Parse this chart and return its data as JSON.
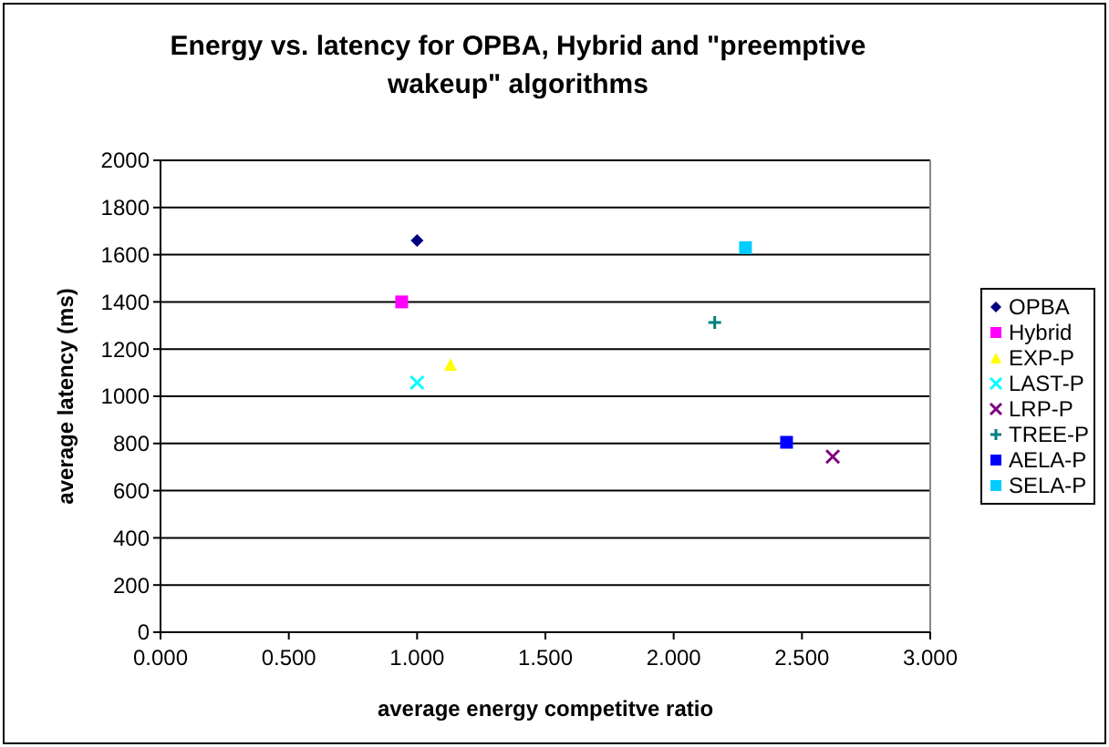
{
  "chart_data": {
    "type": "scatter",
    "title": "Energy vs. latency for OPBA, Hybrid and \"preemptive wakeup\" algorithms",
    "xlabel": "average energy competitve ratio",
    "ylabel": "average latency (ms)",
    "xlim": [
      0,
      3
    ],
    "xticks": [
      {
        "value": 0,
        "label": "0.000"
      },
      {
        "value": 0.5,
        "label": "0.500"
      },
      {
        "value": 1,
        "label": "1.000"
      },
      {
        "value": 1.5,
        "label": "1.500"
      },
      {
        "value": 2,
        "label": "2.000"
      },
      {
        "value": 2.5,
        "label": "2.500"
      },
      {
        "value": 3,
        "label": "3.000"
      }
    ],
    "ylim": [
      0,
      2000
    ],
    "yticks": [
      0,
      200,
      400,
      600,
      800,
      1000,
      1200,
      1400,
      1600,
      1800,
      2000
    ],
    "grid": "y",
    "legend": "right",
    "series": [
      {
        "name": "OPBA",
        "color": "#000080",
        "marker": "diamond",
        "x": [
          1.0
        ],
        "values": [
          1660
        ]
      },
      {
        "name": "Hybrid",
        "color": "#ff00ff",
        "marker": "square",
        "x": [
          0.94
        ],
        "values": [
          1400
        ]
      },
      {
        "name": "EXP-P",
        "color": "#ffff00",
        "marker": "triangle",
        "x": [
          1.13
        ],
        "values": [
          1135
        ]
      },
      {
        "name": "LAST-P",
        "color": "#00ffff",
        "marker": "cross",
        "x": [
          1.0
        ],
        "values": [
          1058
        ]
      },
      {
        "name": "LRP-P",
        "color": "#800080",
        "marker": "cross",
        "x": [
          2.62
        ],
        "values": [
          744
        ]
      },
      {
        "name": "TREE-P",
        "color": "#008080",
        "marker": "plus",
        "x": [
          2.16
        ],
        "values": [
          1313
        ]
      },
      {
        "name": "AELA-P",
        "color": "#0000ff",
        "marker": "square",
        "x": [
          2.44
        ],
        "values": [
          805
        ]
      },
      {
        "name": "SELA-P",
        "color": "#00ccff",
        "marker": "square",
        "x": [
          2.28
        ],
        "values": [
          1630
        ]
      }
    ]
  }
}
